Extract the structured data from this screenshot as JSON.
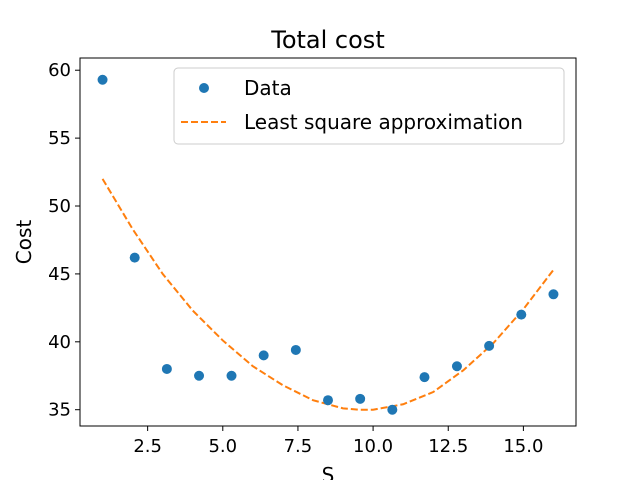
{
  "chart_data": {
    "type": "scatter",
    "title": "Total cost",
    "xlabel": "S",
    "ylabel": "Cost",
    "xlim": [
      0.25,
      16.75
    ],
    "ylim": [
      33.8,
      60.9
    ],
    "xticks": [
      2.5,
      5.0,
      7.5,
      10.0,
      12.5,
      15.0
    ],
    "xtick_labels": [
      "2.5",
      "5.0",
      "7.5",
      "10.0",
      "12.5",
      "15.0"
    ],
    "yticks": [
      35,
      40,
      45,
      50,
      55,
      60
    ],
    "ytick_labels": [
      "35",
      "40",
      "45",
      "50",
      "55",
      "60"
    ],
    "grid": false,
    "legend_position": "top-right",
    "colors": {
      "data": "#1f77b4",
      "fit": "#ff7f0e"
    },
    "series": [
      {
        "name": "Data",
        "kind": "scatter",
        "x": [
          1.0,
          2.07,
          3.14,
          4.21,
          5.29,
          6.36,
          7.43,
          8.5,
          9.57,
          10.64,
          11.71,
          12.79,
          13.86,
          14.93,
          16.0
        ],
        "y": [
          59.3,
          46.2,
          38.0,
          37.5,
          37.5,
          39.0,
          39.4,
          35.7,
          35.8,
          35.0,
          37.4,
          38.2,
          39.7,
          42.0,
          43.5
        ]
      },
      {
        "name": "Least square approximation",
        "kind": "line",
        "style": "dashed",
        "x": [
          1.0,
          2.0,
          3.0,
          4.0,
          5.0,
          6.0,
          7.0,
          8.0,
          9.0,
          9.5,
          10.0,
          11.0,
          12.0,
          13.0,
          14.0,
          15.0,
          16.0
        ],
        "y": [
          52.0,
          48.3,
          45.0,
          42.3,
          40.1,
          38.2,
          36.8,
          35.7,
          35.1,
          35.0,
          35.0,
          35.4,
          36.3,
          37.9,
          39.9,
          42.4,
          45.3
        ]
      }
    ]
  }
}
